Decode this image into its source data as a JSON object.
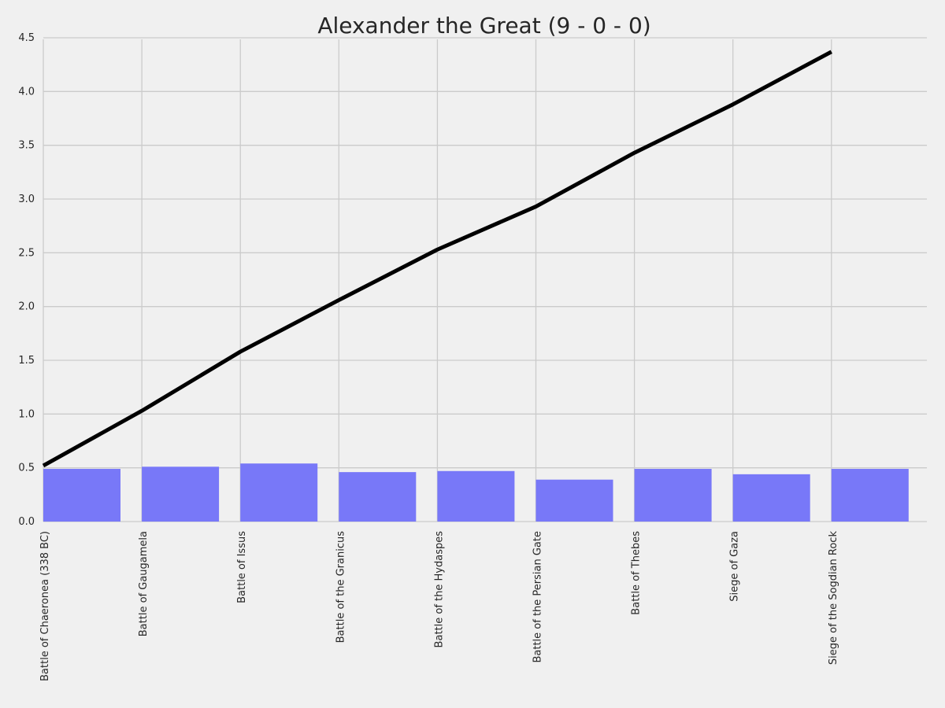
{
  "chart_data": {
    "type": "bar",
    "title": "Alexander the Great (9 - 0 - 0)",
    "xlabel": "",
    "ylabel": "",
    "categories": [
      "Battle of Chaeronea (338 BC)",
      "Battle of Gaugamela",
      "Battle of Issus",
      "Battle of the Granicus",
      "Battle of the Hydaspes",
      "Battle of the Persian Gate",
      "Battle of Thebes",
      "Siege of Gaza",
      "Siege of the Sogdian Rock"
    ],
    "series": [
      {
        "type": "bar",
        "values": [
          0.49,
          0.51,
          0.54,
          0.46,
          0.47,
          0.39,
          0.49,
          0.44,
          0.49
        ],
        "color": "#7878f8"
      },
      {
        "type": "line",
        "values": [
          0.52,
          1.03,
          1.58,
          2.06,
          2.53,
          2.93,
          3.43,
          3.88,
          4.37
        ],
        "color": "#000000"
      }
    ],
    "ylim": [
      0,
      4.5
    ],
    "yticks": [
      "0.0",
      "0.5",
      "1.0",
      "1.5",
      "2.0",
      "2.5",
      "3.0",
      "3.5",
      "4.0",
      "4.5"
    ],
    "ytick_values": [
      0,
      0.5,
      1.0,
      1.5,
      2.0,
      2.5,
      3.0,
      3.5,
      4.0,
      4.5
    ],
    "grid": true,
    "legend": "none",
    "background": "#f0f0f0",
    "grid_color": "#cbcbcb"
  }
}
